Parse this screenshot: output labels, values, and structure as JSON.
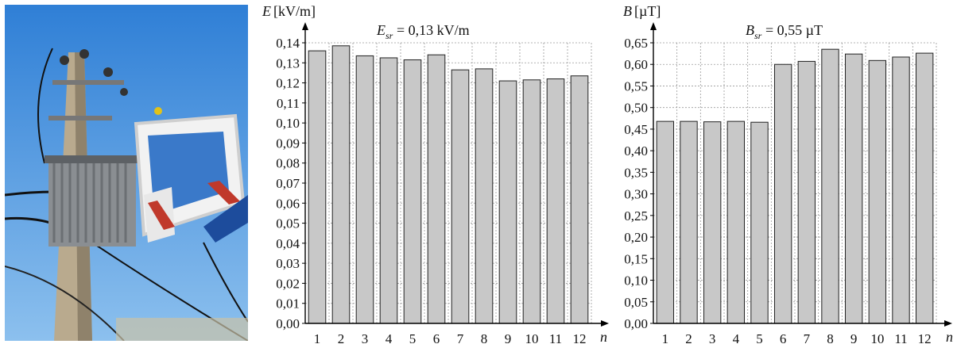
{
  "photo": {
    "description_icon": "photo-icon"
  },
  "chart_data": [
    {
      "type": "bar",
      "ylabel_symbol": "E",
      "ylabel_unit": "[kV/m]",
      "annotation_symbol": "E",
      "annotation_sub": "sr",
      "annotation_value": "= 0,13 kV/m",
      "xlabel": "n",
      "categories": [
        "1",
        "2",
        "3",
        "4",
        "5",
        "6",
        "7",
        "8",
        "9",
        "10",
        "11",
        "12"
      ],
      "values": [
        0.136,
        0.1385,
        0.1335,
        0.1325,
        0.1315,
        0.134,
        0.1265,
        0.127,
        0.121,
        0.1215,
        0.122,
        0.1235
      ],
      "ylim": [
        0,
        0.14
      ],
      "ytick_step": 0.01,
      "ytick_labels": [
        "0,00",
        "0,01",
        "0,02",
        "0,03",
        "0,04",
        "0,05",
        "0,06",
        "0,07",
        "0,08",
        "0,09",
        "0,10",
        "0,11",
        "0,12",
        "0,13",
        "0,14"
      ],
      "grid": true,
      "bar_color": "#c8c8c8"
    },
    {
      "type": "bar",
      "ylabel_symbol": "B",
      "ylabel_unit": "[µT]",
      "annotation_symbol": "B",
      "annotation_sub": "sr",
      "annotation_value": "= 0,55 µT",
      "xlabel": "n",
      "categories": [
        "1",
        "2",
        "3",
        "4",
        "5",
        "6",
        "7",
        "8",
        "9",
        "10",
        "11",
        "12"
      ],
      "values": [
        0.468,
        0.468,
        0.467,
        0.468,
        0.466,
        0.6,
        0.607,
        0.635,
        0.624,
        0.609,
        0.617,
        0.626
      ],
      "ylim": [
        0,
        0.65
      ],
      "ytick_step": 0.05,
      "ytick_labels": [
        "0,00",
        "0,05",
        "0,10",
        "0,15",
        "0,20",
        "0,25",
        "0,30",
        "0,35",
        "0,40",
        "0,45",
        "0,50",
        "0,55",
        "0,60",
        "0,65"
      ],
      "grid": true,
      "bar_color": "#c8c8c8"
    }
  ]
}
